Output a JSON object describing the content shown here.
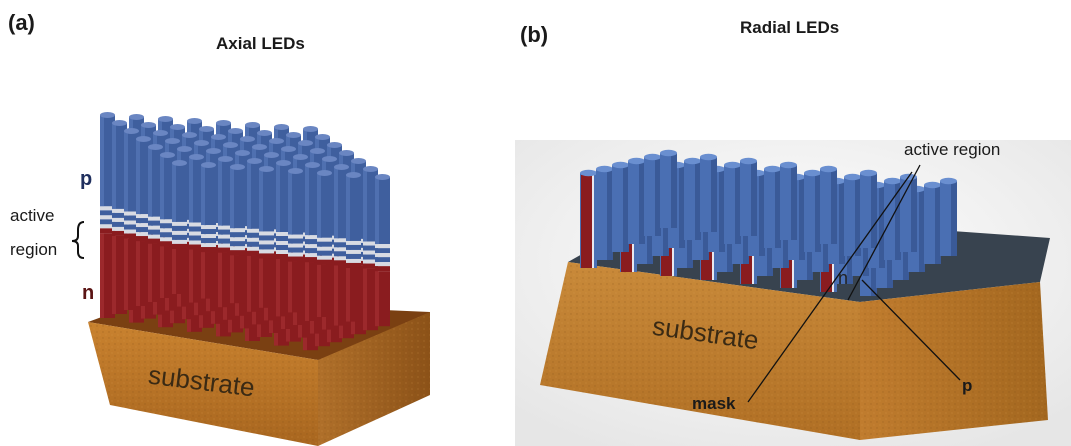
{
  "panel_a": {
    "letter": "(a)",
    "title": "Axial LEDs",
    "label_p": "p",
    "label_active_1": "active",
    "label_active_2": "region",
    "label_n": "n",
    "label_substrate": "substrate"
  },
  "panel_b": {
    "letter": "(b)",
    "title": "Radial LEDs",
    "label_active": "active region",
    "label_n": "n",
    "label_substrate": "substrate",
    "label_mask": "mask",
    "label_p": "p"
  },
  "colors": {
    "p_blue": "#3f5f9e",
    "n_red": "#8a1c1f",
    "active_white": "#d8dbe3",
    "substrate_orange": "#c9822f",
    "mask_dark": "#38434f"
  }
}
